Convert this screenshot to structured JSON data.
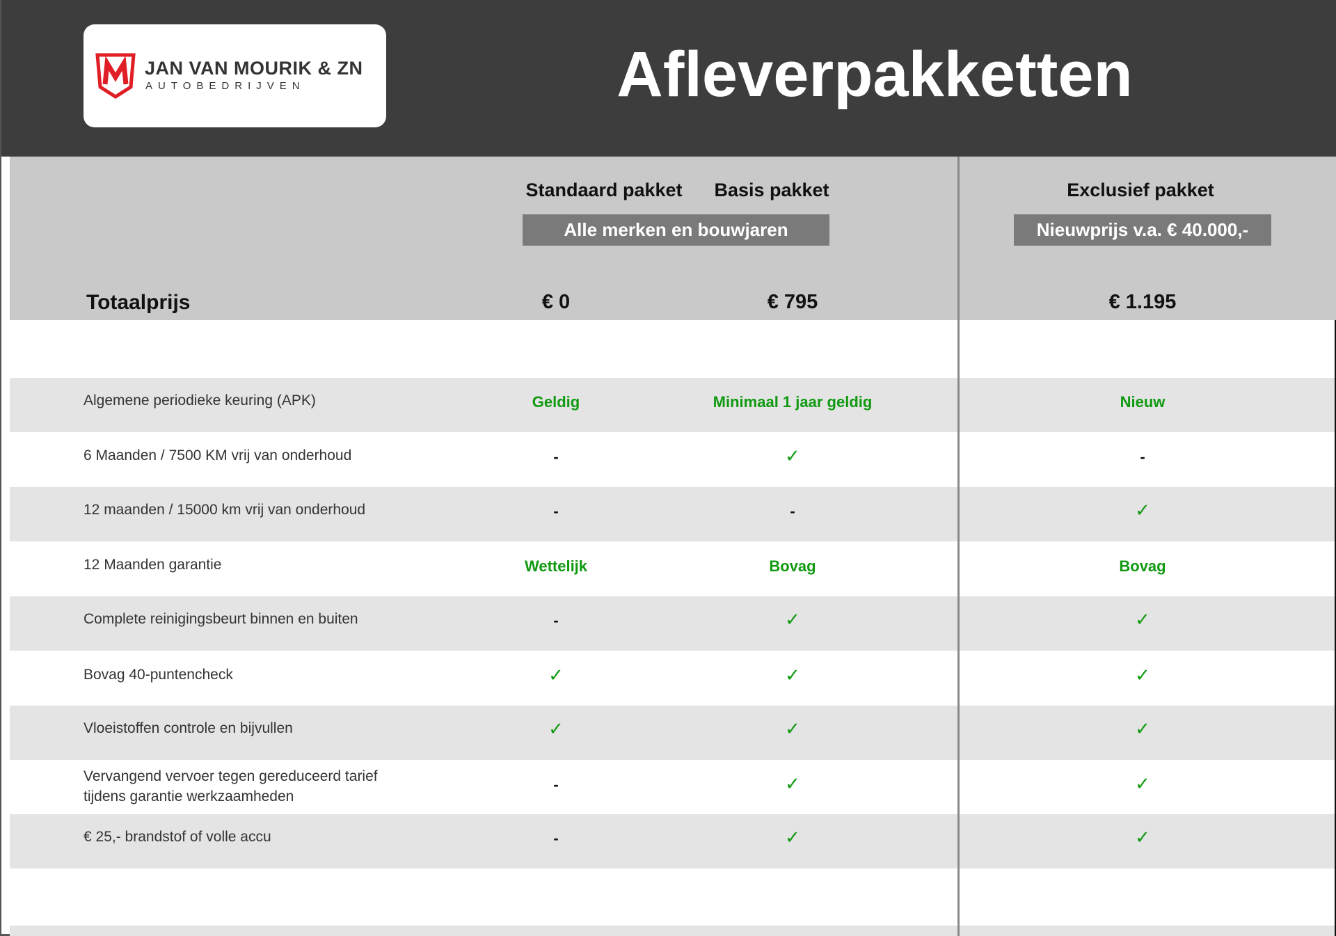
{
  "logo": {
    "brand": "JAN VAN MOURIK & ZN",
    "subtitle": "AUTOBEDRIJVEN",
    "mark": "M"
  },
  "title": "Afleverpakketten",
  "packages": [
    {
      "name": "Standaard pakket",
      "price": "€ 0"
    },
    {
      "name": "Basis pakket",
      "price": "€ 795"
    },
    {
      "name": "Exclusief pakket",
      "price": "€ 1.195"
    }
  ],
  "pills": {
    "all_brands": "Alle merken en bouwjaren",
    "new_price": "Nieuwprijs v.a. € 40.000,-"
  },
  "total_label": "Totaalprijs",
  "colors": {
    "header": "#3d3d3d",
    "accent_green": "#119a11",
    "logo_red": "#e01e26"
  },
  "rows": [
    {
      "label": "Algemene periodieke keuring (APK)",
      "values": [
        "Geldig",
        "Minimaal 1 jaar geldig",
        "Nieuw"
      ]
    },
    {
      "label": "6 Maanden / 7500 KM vrij van onderhoud",
      "values": [
        "-",
        "✓",
        "-"
      ]
    },
    {
      "label": "12 maanden / 15000 km vrij van onderhoud",
      "values": [
        "-",
        "-",
        "✓"
      ]
    },
    {
      "label": "12 Maanden  garantie",
      "values": [
        "Wettelijk",
        "Bovag",
        "Bovag"
      ]
    },
    {
      "label": "Complete reinigingsbeurt binnen en buiten",
      "values": [
        "-",
        "✓",
        "✓"
      ]
    },
    {
      "label": "Bovag 40-puntencheck",
      "values": [
        "✓",
        "✓",
        "✓"
      ]
    },
    {
      "label": "Vloeistoffen controle en bijvullen",
      "values": [
        "✓",
        "✓",
        "✓"
      ]
    },
    {
      "label": "Vervangend vervoer tegen gereduceerd tarief tijdens garantie werkzaamheden",
      "values": [
        "-",
        "✓",
        "✓"
      ]
    },
    {
      "label": "€ 25,- brandstof of  volle accu",
      "values": [
        "-",
        "✓",
        "✓"
      ]
    }
  ]
}
